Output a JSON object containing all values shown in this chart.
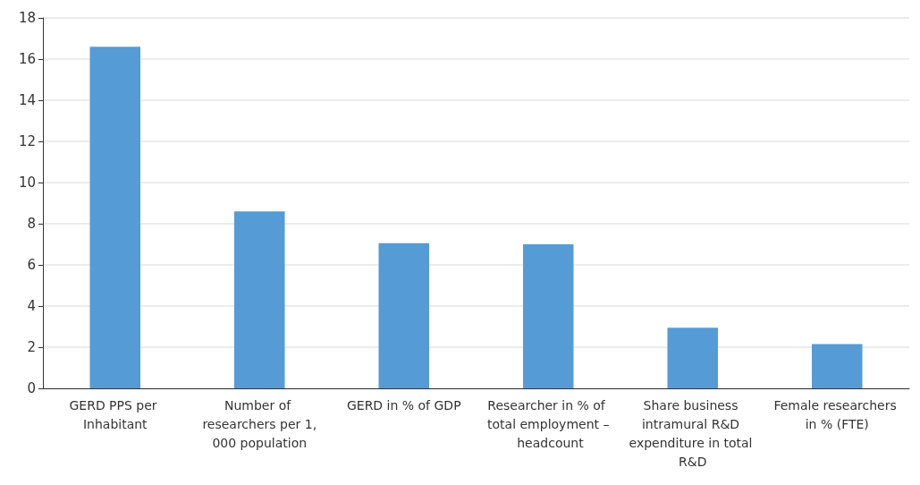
{
  "chart_data": {
    "type": "bar",
    "categories": [
      "GERD PPS per Inhabitant",
      "Number of researchers per 1,000 population",
      "GERD in % of GDP",
      "Researcher in % of total employment – headcount",
      "Share business intramural R&D expenditure in total R&D",
      "Female researchers in % (FTE)"
    ],
    "values": [
      16.6,
      8.6,
      7.05,
      7.0,
      2.95,
      2.15
    ],
    "color": "#559bd6",
    "ylim": [
      0,
      18
    ],
    "yticks": [
      0,
      2,
      4,
      6,
      8,
      10,
      12,
      14,
      16,
      18
    ],
    "grid": "y"
  }
}
